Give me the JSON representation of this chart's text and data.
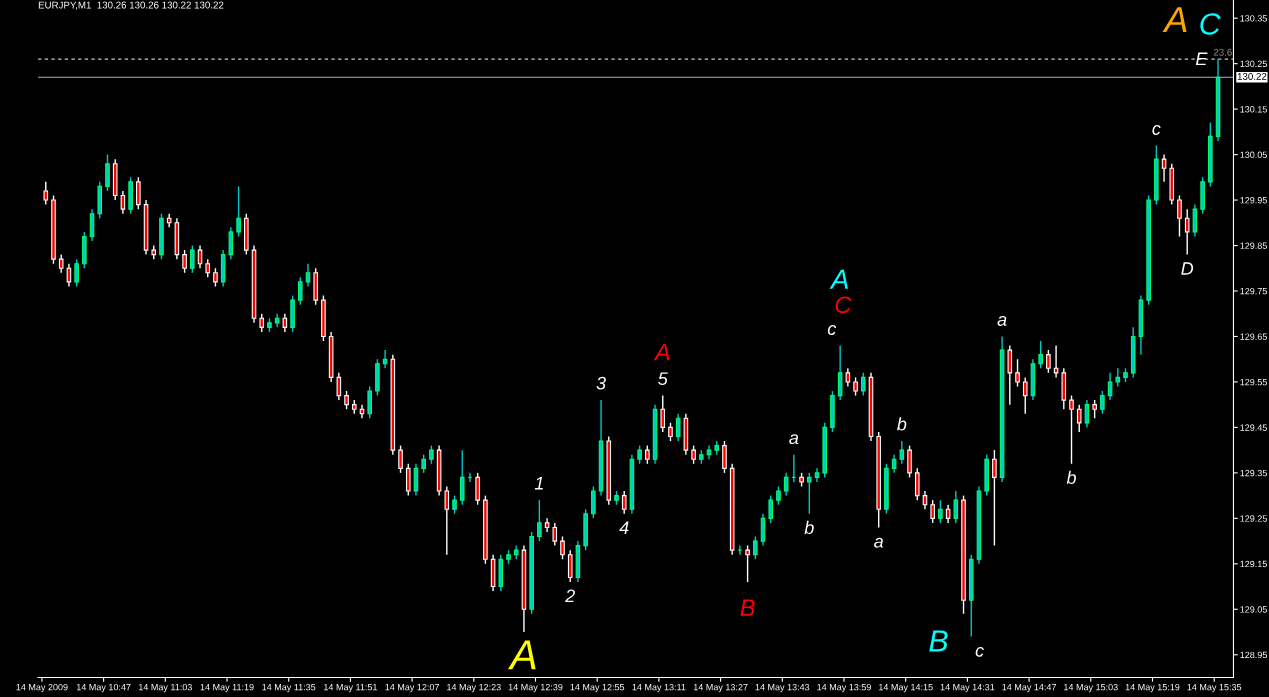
{
  "chart_data": {
    "type": "candlestick",
    "title": "EURJPY,M1  130.26 130.26 130.22 130.22",
    "x": [
      "2009-05-14T10:32",
      "2009-05-14T10:34",
      "2009-05-14T10:36",
      "2009-05-14T10:38",
      "2009-05-14T10:40",
      "2009-05-14T10:42",
      "2009-05-14T10:44",
      "2009-05-14T10:46",
      "2009-05-14T10:48",
      "2009-05-14T10:50",
      "2009-05-14T10:52",
      "2009-05-14T10:54",
      "2009-05-14T10:56",
      "2009-05-14T10:58",
      "2009-05-14T11:00",
      "2009-05-14T11:02",
      "2009-05-14T11:04",
      "2009-05-14T11:06",
      "2009-05-14T11:08",
      "2009-05-14T11:10",
      "2009-05-14T11:12",
      "2009-05-14T11:14",
      "2009-05-14T11:16",
      "2009-05-14T11:18",
      "2009-05-14T11:20",
      "2009-05-14T11:22",
      "2009-05-14T11:24",
      "2009-05-14T11:26",
      "2009-05-14T11:28",
      "2009-05-14T11:30",
      "2009-05-14T11:32",
      "2009-05-14T11:34",
      "2009-05-14T11:36",
      "2009-05-14T11:38",
      "2009-05-14T11:40",
      "2009-05-14T11:42",
      "2009-05-14T11:44",
      "2009-05-14T11:46",
      "2009-05-14T11:48",
      "2009-05-14T11:50",
      "2009-05-14T11:52",
      "2009-05-14T11:54",
      "2009-05-14T11:56",
      "2009-05-14T11:58",
      "2009-05-14T12:00",
      "2009-05-14T12:02",
      "2009-05-14T12:04",
      "2009-05-14T12:06",
      "2009-05-14T12:08",
      "2009-05-14T12:10",
      "2009-05-14T12:12",
      "2009-05-14T12:14",
      "2009-05-14T12:16",
      "2009-05-14T12:18",
      "2009-05-14T12:20",
      "2009-05-14T12:22",
      "2009-05-14T12:24",
      "2009-05-14T12:26",
      "2009-05-14T12:28",
      "2009-05-14T12:30",
      "2009-05-14T12:32",
      "2009-05-14T12:34",
      "2009-05-14T12:36",
      "2009-05-14T12:38",
      "2009-05-14T12:40",
      "2009-05-14T12:42",
      "2009-05-14T12:44",
      "2009-05-14T12:46",
      "2009-05-14T12:48",
      "2009-05-14T12:50",
      "2009-05-14T12:52",
      "2009-05-14T12:54",
      "2009-05-14T12:56",
      "2009-05-14T12:58",
      "2009-05-14T13:00",
      "2009-05-14T13:02",
      "2009-05-14T13:04",
      "2009-05-14T13:06",
      "2009-05-14T13:08",
      "2009-05-14T13:10",
      "2009-05-14T13:12",
      "2009-05-14T13:14",
      "2009-05-14T13:16",
      "2009-05-14T13:18",
      "2009-05-14T13:20",
      "2009-05-14T13:22",
      "2009-05-14T13:24",
      "2009-05-14T13:26",
      "2009-05-14T13:28",
      "2009-05-14T13:30",
      "2009-05-14T13:32",
      "2009-05-14T13:34",
      "2009-05-14T13:36",
      "2009-05-14T13:38",
      "2009-05-14T13:40",
      "2009-05-14T13:42",
      "2009-05-14T13:44",
      "2009-05-14T13:46",
      "2009-05-14T13:48",
      "2009-05-14T13:50",
      "2009-05-14T13:52",
      "2009-05-14T13:54",
      "2009-05-14T13:56",
      "2009-05-14T13:58",
      "2009-05-14T14:00",
      "2009-05-14T14:02",
      "2009-05-14T14:04",
      "2009-05-14T14:06",
      "2009-05-14T14:08",
      "2009-05-14T14:10",
      "2009-05-14T14:12",
      "2009-05-14T14:14",
      "2009-05-14T14:16",
      "2009-05-14T14:18",
      "2009-05-14T14:20",
      "2009-05-14T14:22",
      "2009-05-14T14:24",
      "2009-05-14T14:26",
      "2009-05-14T14:28",
      "2009-05-14T14:30",
      "2009-05-14T14:32",
      "2009-05-14T14:34",
      "2009-05-14T14:36",
      "2009-05-14T14:38",
      "2009-05-14T14:40",
      "2009-05-14T14:42",
      "2009-05-14T14:44",
      "2009-05-14T14:46",
      "2009-05-14T14:48",
      "2009-05-14T14:50",
      "2009-05-14T14:52",
      "2009-05-14T14:54",
      "2009-05-14T14:56",
      "2009-05-14T14:58",
      "2009-05-14T15:00",
      "2009-05-14T15:02",
      "2009-05-14T15:04",
      "2009-05-14T15:06",
      "2009-05-14T15:08",
      "2009-05-14T15:10",
      "2009-05-14T15:12",
      "2009-05-14T15:14",
      "2009-05-14T15:16",
      "2009-05-14T15:18",
      "2009-05-14T15:20",
      "2009-05-14T15:22",
      "2009-05-14T15:24",
      "2009-05-14T15:26",
      "2009-05-14T15:28",
      "2009-05-14T15:30",
      "2009-05-14T15:32",
      "2009-05-14T15:34",
      "2009-05-14T15:36"
    ],
    "ohlc": [
      [
        129.97,
        129.99,
        129.94,
        129.95
      ],
      [
        129.95,
        129.96,
        129.81,
        129.82
      ],
      [
        129.82,
        129.83,
        129.79,
        129.8
      ],
      [
        129.8,
        129.81,
        129.76,
        129.77
      ],
      [
        129.77,
        129.82,
        129.76,
        129.81
      ],
      [
        129.81,
        129.88,
        129.8,
        129.87
      ],
      [
        129.87,
        129.93,
        129.86,
        129.92
      ],
      [
        129.92,
        129.99,
        129.91,
        129.98
      ],
      [
        129.98,
        130.05,
        129.97,
        130.03
      ],
      [
        130.03,
        130.04,
        129.95,
        129.96
      ],
      [
        129.96,
        129.97,
        129.92,
        129.93
      ],
      [
        129.93,
        130.0,
        129.92,
        129.99
      ],
      [
        129.99,
        130.0,
        129.93,
        129.94
      ],
      [
        129.94,
        129.95,
        129.83,
        129.84
      ],
      [
        129.84,
        129.85,
        129.82,
        129.83
      ],
      [
        129.83,
        129.92,
        129.82,
        129.91
      ],
      [
        129.91,
        129.92,
        129.89,
        129.9
      ],
      [
        129.9,
        129.91,
        129.82,
        129.83
      ],
      [
        129.83,
        129.84,
        129.79,
        129.8
      ],
      [
        129.8,
        129.85,
        129.79,
        129.84
      ],
      [
        129.84,
        129.85,
        129.8,
        129.81
      ],
      [
        129.81,
        129.82,
        129.78,
        129.79
      ],
      [
        129.79,
        129.8,
        129.76,
        129.77
      ],
      [
        129.77,
        129.84,
        129.76,
        129.83
      ],
      [
        129.83,
        129.89,
        129.82,
        129.88
      ],
      [
        129.88,
        129.98,
        129.87,
        129.91
      ],
      [
        129.91,
        129.92,
        129.83,
        129.84
      ],
      [
        129.84,
        129.85,
        129.68,
        129.69
      ],
      [
        129.69,
        129.7,
        129.66,
        129.67
      ],
      [
        129.67,
        129.69,
        129.66,
        129.68
      ],
      [
        129.68,
        129.7,
        129.67,
        129.69
      ],
      [
        129.69,
        129.7,
        129.66,
        129.67
      ],
      [
        129.67,
        129.74,
        129.66,
        129.73
      ],
      [
        129.73,
        129.78,
        129.72,
        129.77
      ],
      [
        129.77,
        129.81,
        129.76,
        129.79
      ],
      [
        129.79,
        129.8,
        129.72,
        129.73
      ],
      [
        129.73,
        129.74,
        129.64,
        129.65
      ],
      [
        129.65,
        129.66,
        129.55,
        129.56
      ],
      [
        129.56,
        129.57,
        129.51,
        129.52
      ],
      [
        129.52,
        129.53,
        129.49,
        129.5
      ],
      [
        129.5,
        129.51,
        129.48,
        129.49
      ],
      [
        129.49,
        129.5,
        129.47,
        129.48
      ],
      [
        129.48,
        129.54,
        129.47,
        129.53
      ],
      [
        129.53,
        129.6,
        129.52,
        129.59
      ],
      [
        129.59,
        129.62,
        129.58,
        129.6
      ],
      [
        129.6,
        129.61,
        129.39,
        129.4
      ],
      [
        129.4,
        129.41,
        129.35,
        129.36
      ],
      [
        129.36,
        129.37,
        129.3,
        129.31
      ],
      [
        129.31,
        129.37,
        129.3,
        129.36
      ],
      [
        129.36,
        129.39,
        129.35,
        129.38
      ],
      [
        129.38,
        129.41,
        129.37,
        129.4
      ],
      [
        129.4,
        129.41,
        129.3,
        129.31
      ],
      [
        129.31,
        129.32,
        129.17,
        129.27
      ],
      [
        129.27,
        129.3,
        129.26,
        129.29
      ],
      [
        129.29,
        129.4,
        129.28,
        129.34
      ],
      [
        129.34,
        129.35,
        129.33,
        129.34
      ],
      [
        129.34,
        129.35,
        129.28,
        129.29
      ],
      [
        129.29,
        129.3,
        129.15,
        129.16
      ],
      [
        129.16,
        129.17,
        129.09,
        129.1
      ],
      [
        129.1,
        129.17,
        129.09,
        129.16
      ],
      [
        129.16,
        129.18,
        129.15,
        129.17
      ],
      [
        129.17,
        129.19,
        129.16,
        129.18
      ],
      [
        129.18,
        129.19,
        129.0,
        129.05
      ],
      [
        129.05,
        129.22,
        129.04,
        129.21
      ],
      [
        129.21,
        129.29,
        129.2,
        129.24
      ],
      [
        129.24,
        129.25,
        129.22,
        129.23
      ],
      [
        129.23,
        129.24,
        129.19,
        129.2
      ],
      [
        129.2,
        129.21,
        129.16,
        129.17
      ],
      [
        129.17,
        129.18,
        129.11,
        129.12
      ],
      [
        129.12,
        129.2,
        129.11,
        129.19
      ],
      [
        129.19,
        129.27,
        129.18,
        129.26
      ],
      [
        129.26,
        129.32,
        129.25,
        129.31
      ],
      [
        129.31,
        129.51,
        129.3,
        129.42
      ],
      [
        129.42,
        129.43,
        129.28,
        129.29
      ],
      [
        129.29,
        129.31,
        129.28,
        129.3
      ],
      [
        129.3,
        129.31,
        129.26,
        129.27
      ],
      [
        129.27,
        129.39,
        129.26,
        129.38
      ],
      [
        129.38,
        129.41,
        129.37,
        129.4
      ],
      [
        129.4,
        129.41,
        129.37,
        129.38
      ],
      [
        129.38,
        129.5,
        129.37,
        129.49
      ],
      [
        129.49,
        129.52,
        129.44,
        129.45
      ],
      [
        129.45,
        129.46,
        129.42,
        129.43
      ],
      [
        129.43,
        129.48,
        129.42,
        129.47
      ],
      [
        129.47,
        129.48,
        129.39,
        129.4
      ],
      [
        129.4,
        129.41,
        129.37,
        129.38
      ],
      [
        129.38,
        129.4,
        129.37,
        129.39
      ],
      [
        129.39,
        129.41,
        129.38,
        129.4
      ],
      [
        129.4,
        129.42,
        129.39,
        129.41
      ],
      [
        129.41,
        129.42,
        129.35,
        129.36
      ],
      [
        129.36,
        129.37,
        129.17,
        129.18
      ],
      [
        129.18,
        129.19,
        129.17,
        129.18
      ],
      [
        129.18,
        129.19,
        129.11,
        129.17
      ],
      [
        129.17,
        129.21,
        129.16,
        129.2
      ],
      [
        129.2,
        129.26,
        129.19,
        129.25
      ],
      [
        129.25,
        129.3,
        129.24,
        129.29
      ],
      [
        129.29,
        129.32,
        129.28,
        129.31
      ],
      [
        129.31,
        129.35,
        129.3,
        129.34
      ],
      [
        129.34,
        129.39,
        129.33,
        129.34
      ],
      [
        129.34,
        129.35,
        129.32,
        129.33
      ],
      [
        129.33,
        129.35,
        129.26,
        129.34
      ],
      [
        129.34,
        129.36,
        129.33,
        129.35
      ],
      [
        129.35,
        129.46,
        129.34,
        129.45
      ],
      [
        129.45,
        129.53,
        129.44,
        129.52
      ],
      [
        129.52,
        129.63,
        129.51,
        129.57
      ],
      [
        129.57,
        129.58,
        129.54,
        129.55
      ],
      [
        129.55,
        129.56,
        129.52,
        129.53
      ],
      [
        129.53,
        129.57,
        129.52,
        129.56
      ],
      [
        129.56,
        129.57,
        129.42,
        129.43
      ],
      [
        129.43,
        129.44,
        129.23,
        129.27
      ],
      [
        129.27,
        129.37,
        129.26,
        129.36
      ],
      [
        129.36,
        129.39,
        129.35,
        129.38
      ],
      [
        129.38,
        129.42,
        129.37,
        129.4
      ],
      [
        129.4,
        129.41,
        129.34,
        129.35
      ],
      [
        129.35,
        129.36,
        129.29,
        129.3
      ],
      [
        129.3,
        129.31,
        129.27,
        129.28
      ],
      [
        129.28,
        129.29,
        129.24,
        129.25
      ],
      [
        129.25,
        129.29,
        129.24,
        129.27
      ],
      [
        129.27,
        129.28,
        129.24,
        129.25
      ],
      [
        129.25,
        129.31,
        129.24,
        129.29
      ],
      [
        129.29,
        129.3,
        129.04,
        129.07
      ],
      [
        129.07,
        129.17,
        128.99,
        129.16
      ],
      [
        129.16,
        129.32,
        129.15,
        129.31
      ],
      [
        129.31,
        129.39,
        129.3,
        129.38
      ],
      [
        129.38,
        129.4,
        129.19,
        129.34
      ],
      [
        129.34,
        129.65,
        129.33,
        129.62
      ],
      [
        129.62,
        129.63,
        129.5,
        129.57
      ],
      [
        129.57,
        129.6,
        129.54,
        129.55
      ],
      [
        129.55,
        129.56,
        129.48,
        129.52
      ],
      [
        129.52,
        129.6,
        129.51,
        129.59
      ],
      [
        129.59,
        129.64,
        129.58,
        129.61
      ],
      [
        129.61,
        129.62,
        129.57,
        129.58
      ],
      [
        129.58,
        129.63,
        129.56,
        129.57
      ],
      [
        129.57,
        129.58,
        129.49,
        129.51
      ],
      [
        129.51,
        129.52,
        129.37,
        129.49
      ],
      [
        129.49,
        129.5,
        129.44,
        129.46
      ],
      [
        129.46,
        129.51,
        129.45,
        129.5
      ],
      [
        129.5,
        129.51,
        129.47,
        129.49
      ],
      [
        129.49,
        129.53,
        129.48,
        129.52
      ],
      [
        129.52,
        129.57,
        129.51,
        129.55
      ],
      [
        129.55,
        129.58,
        129.54,
        129.56
      ],
      [
        129.56,
        129.58,
        129.55,
        129.57
      ],
      [
        129.57,
        129.67,
        129.56,
        129.65
      ],
      [
        129.65,
        129.74,
        129.61,
        129.73
      ],
      [
        129.73,
        129.96,
        129.72,
        129.95
      ],
      [
        129.95,
        130.07,
        129.94,
        130.04
      ],
      [
        130.04,
        130.05,
        129.99,
        130.02
      ],
      [
        130.02,
        130.03,
        129.94,
        129.95
      ],
      [
        129.95,
        129.96,
        129.87,
        129.91
      ],
      [
        129.91,
        129.93,
        129.83,
        129.88
      ],
      [
        129.88,
        129.94,
        129.87,
        129.93
      ],
      [
        129.93,
        130.0,
        129.92,
        129.99
      ],
      [
        129.99,
        130.12,
        129.98,
        130.09
      ],
      [
        130.09,
        130.26,
        130.08,
        130.22
      ]
    ],
    "xlim": [
      "2009-05-14T10:30",
      "2009-05-14T15:40"
    ],
    "xticks": [
      {
        "value": "2009-05-14T10:31",
        "label": "14 May 2009"
      },
      {
        "value": "2009-05-14T10:47",
        "label": "14 May 10:47"
      },
      {
        "value": "2009-05-14T11:03",
        "label": "14 May 11:03"
      },
      {
        "value": "2009-05-14T11:19",
        "label": "14 May 11:19"
      },
      {
        "value": "2009-05-14T11:35",
        "label": "14 May 11:35"
      },
      {
        "value": "2009-05-14T11:51",
        "label": "14 May 11:51"
      },
      {
        "value": "2009-05-14T12:07",
        "label": "14 May 12:07"
      },
      {
        "value": "2009-05-14T12:23",
        "label": "14 May 12:23"
      },
      {
        "value": "2009-05-14T12:39",
        "label": "14 May 12:39"
      },
      {
        "value": "2009-05-14T12:55",
        "label": "14 May 12:55"
      },
      {
        "value": "2009-05-14T13:11",
        "label": "14 May 13:11"
      },
      {
        "value": "2009-05-14T13:27",
        "label": "14 May 13:27"
      },
      {
        "value": "2009-05-14T13:43",
        "label": "14 May 13:43"
      },
      {
        "value": "2009-05-14T13:59",
        "label": "14 May 13:59"
      },
      {
        "value": "2009-05-14T14:15",
        "label": "14 May 14:15"
      },
      {
        "value": "2009-05-14T14:31",
        "label": "14 May 14:31"
      },
      {
        "value": "2009-05-14T14:47",
        "label": "14 May 14:47"
      },
      {
        "value": "2009-05-14T15:03",
        "label": "14 May 15:03"
      },
      {
        "value": "2009-05-14T15:19",
        "label": "14 May 15:19"
      },
      {
        "value": "2009-05-14T15:35",
        "label": "14 May 15:35"
      }
    ],
    "ylim": [
      128.9,
      130.39
    ],
    "yticks": [
      {
        "value": 128.95,
        "label": "128.95"
      },
      {
        "value": 129.05,
        "label": "129.05"
      },
      {
        "value": 129.15,
        "label": "129.15"
      },
      {
        "value": 129.25,
        "label": "129.25"
      },
      {
        "value": 129.35,
        "label": "129.35"
      },
      {
        "value": 129.45,
        "label": "129.45"
      },
      {
        "value": 129.55,
        "label": "129.55"
      },
      {
        "value": 129.65,
        "label": "129.65"
      },
      {
        "value": 129.75,
        "label": "129.75"
      },
      {
        "value": 129.85,
        "label": "129.85"
      },
      {
        "value": 129.95,
        "label": "129.95"
      },
      {
        "value": 130.05,
        "label": "130.05"
      },
      {
        "value": 130.15,
        "label": "130.15"
      },
      {
        "value": 130.25,
        "label": "130.25"
      },
      {
        "value": 130.35,
        "label": "130.35"
      }
    ],
    "ref_lines": [
      {
        "axis": "y",
        "value": 130.26,
        "color": "#c8c8c8",
        "line_style": "dashed"
      },
      {
        "axis": "y",
        "value": 130.22,
        "label": "130.22",
        "color": "#a8b0c8",
        "line_style": "solid"
      }
    ],
    "annotations": [
      {
        "text": "A",
        "x": "2009-05-14T12:36",
        "y": 129.0
      },
      {
        "text": "1",
        "x": "2009-05-14T12:40",
        "y": 129.29
      },
      {
        "text": "2",
        "x": "2009-05-14T12:48",
        "y": 129.11
      },
      {
        "text": "3",
        "x": "2009-05-14T12:56",
        "y": 129.51
      },
      {
        "text": "4",
        "x": "2009-05-14T13:02",
        "y": 129.26
      },
      {
        "text": "5",
        "x": "2009-05-14T13:12",
        "y": 129.52
      },
      {
        "text": "A",
        "x": "2009-05-14T13:12",
        "y": 129.52
      },
      {
        "text": "B",
        "x": "2009-05-14T13:34",
        "y": 129.11
      },
      {
        "text": "a",
        "x": "2009-05-14T13:46",
        "y": 129.39
      },
      {
        "text": "b",
        "x": "2009-05-14T13:50",
        "y": 129.26
      },
      {
        "text": "c",
        "x": "2009-05-14T13:58",
        "y": 129.63
      },
      {
        "text": "C",
        "x": "2009-05-14T13:58",
        "y": 129.63
      },
      {
        "text": "A",
        "x": "2009-05-14T13:58",
        "y": 129.63
      },
      {
        "text": "a",
        "x": "2009-05-14T14:08",
        "y": 129.23
      },
      {
        "text": "b",
        "x": "2009-05-14T14:14",
        "y": 129.42
      },
      {
        "text": "B",
        "x": "2009-05-14T14:30",
        "y": 129.04
      },
      {
        "text": "c",
        "x": "2009-05-14T14:32",
        "y": 128.99
      },
      {
        "text": "a",
        "x": "2009-05-14T14:40",
        "y": 129.65
      },
      {
        "text": "b",
        "x": "2009-05-14T14:58",
        "y": 129.37
      },
      {
        "text": "c",
        "x": "2009-05-14T15:20",
        "y": 130.07
      },
      {
        "text": "D",
        "x": "2009-05-14T15:28",
        "y": 129.83
      },
      {
        "text": "E",
        "x": "2009-05-14T15:36",
        "y": 130.26
      },
      {
        "text": "A",
        "x": "2009-05-14T15:36",
        "y": 130.26
      },
      {
        "text": "C",
        "x": "2009-05-14T15:36",
        "y": 130.26
      },
      "23.6"
    ],
    "grid": false
  }
}
